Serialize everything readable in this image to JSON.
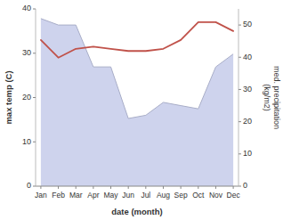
{
  "chart_data": {
    "type": "line",
    "xlabel": "date (month)",
    "ylabel": "max temp (C)",
    "y2label": "med. precipitation\n(kg/m2)",
    "categories": [
      "Jan",
      "Feb",
      "Mar",
      "Apr",
      "May",
      "Jun",
      "Jul",
      "Aug",
      "Sep",
      "Oct",
      "Nov",
      "Dec"
    ],
    "series": [
      {
        "type": "area",
        "axis": "y2",
        "color": "#c5cbea",
        "values": [
          52,
          50,
          50,
          37,
          37,
          21,
          22,
          26,
          25,
          24,
          37,
          41
        ]
      },
      {
        "type": "line",
        "color": "#c0524a",
        "values": [
          33,
          29,
          31,
          31.5,
          31,
          30.5,
          30.5,
          31,
          33,
          37,
          37,
          35
        ]
      }
    ],
    "ylim": [
      0,
      40
    ],
    "yticks": [
      0,
      10,
      20,
      30,
      40
    ],
    "y2lim": [
      0,
      55
    ],
    "y2ticks": [
      0,
      10,
      20,
      30,
      40,
      50
    ],
    "grid": false
  }
}
